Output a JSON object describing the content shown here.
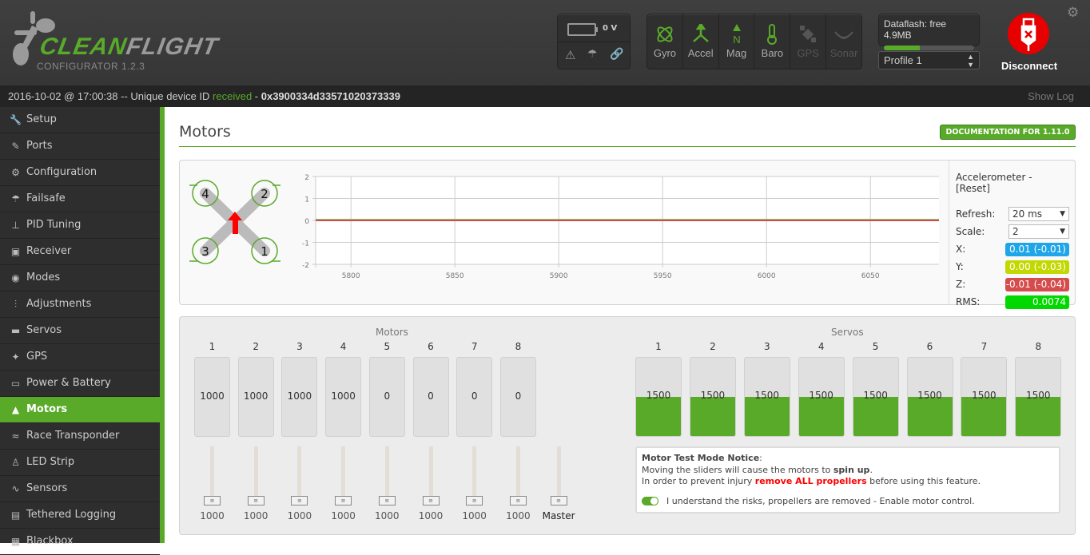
{
  "header": {
    "logo": {
      "word_green": "CLEAN",
      "word_grey": "FLIGHT",
      "subtitle": "CONFIGURATOR  1.2.3"
    },
    "battery": {
      "voltage": "0 V"
    },
    "status_icons": [
      "warning-icon",
      "failsafe-parachute-icon",
      "link-icon"
    ],
    "sensors": [
      {
        "label": "Gyro",
        "active": true
      },
      {
        "label": "Accel",
        "active": true
      },
      {
        "label": "Mag",
        "active": true
      },
      {
        "label": "Baro",
        "active": true
      },
      {
        "label": "GPS",
        "active": false
      },
      {
        "label": "Sonar",
        "active": false
      }
    ],
    "dataflash": {
      "label": "Dataflash: free 4.9MB",
      "used_fraction": 0.4
    },
    "profile": {
      "selected": "Profile 1"
    },
    "disconnect_label": "Disconnect"
  },
  "logbar": {
    "timestamp": "2016-10-02 @ 17:00:38",
    "text": " -- Unique device ID ",
    "status": "received",
    "sep": " - ",
    "device_id": "0x3900334d33571020373339",
    "show_log": "Show Log"
  },
  "sidebar": {
    "items": [
      {
        "label": "Setup",
        "icon": "🔧"
      },
      {
        "label": "Ports",
        "icon": "✎"
      },
      {
        "label": "Configuration",
        "icon": "⚙"
      },
      {
        "label": "Failsafe",
        "icon": "☂"
      },
      {
        "label": "PID Tuning",
        "icon": "⊥"
      },
      {
        "label": "Receiver",
        "icon": "▣"
      },
      {
        "label": "Modes",
        "icon": "◉"
      },
      {
        "label": "Adjustments",
        "icon": "⫶"
      },
      {
        "label": "Servos",
        "icon": "▬"
      },
      {
        "label": "GPS",
        "icon": "✦"
      },
      {
        "label": "Power & Battery",
        "icon": "▭"
      },
      {
        "label": "Motors",
        "icon": "▲",
        "active": true
      },
      {
        "label": "Race Transponder",
        "icon": "≈"
      },
      {
        "label": "LED Strip",
        "icon": "♙"
      },
      {
        "label": "Sensors",
        "icon": "∿"
      },
      {
        "label": "Tethered Logging",
        "icon": "▤"
      },
      {
        "label": "Blackbox",
        "icon": "▦"
      }
    ]
  },
  "main": {
    "title": "Motors",
    "doc_button": "DOCUMENTATION FOR 1.11.0",
    "quad_motor_labels": [
      "4",
      "2",
      "3",
      "1"
    ],
    "accelerometer": {
      "title": "Accelerometer - [Reset]",
      "refresh_label": "Refresh:",
      "refresh_value": "20 ms",
      "scale_label": "Scale:",
      "scale_value": "2",
      "x_label": "X:",
      "x_value": "0.01 (-0.01)",
      "y_label": "Y:",
      "y_value": "0.00 (-0.03)",
      "z_label": "Z:",
      "z_value": "-0.01 (-0.04)",
      "rms_label": "RMS:",
      "rms_value": "0.0074",
      "colors": {
        "x": "#1fa6e9",
        "y": "#c2d800",
        "z": "#d54c4c",
        "rms": "#00d800"
      }
    },
    "motors_title": "Motors",
    "motors": [
      {
        "n": "1",
        "value": "1000",
        "slider": "1000"
      },
      {
        "n": "2",
        "value": "1000",
        "slider": "1000"
      },
      {
        "n": "3",
        "value": "1000",
        "slider": "1000"
      },
      {
        "n": "4",
        "value": "1000",
        "slider": "1000"
      },
      {
        "n": "5",
        "value": "0",
        "slider": "1000"
      },
      {
        "n": "6",
        "value": "0",
        "slider": "1000"
      },
      {
        "n": "7",
        "value": "0",
        "slider": "1000"
      },
      {
        "n": "8",
        "value": "0",
        "slider": "1000"
      }
    ],
    "master_label": "Master",
    "servos_title": "Servos",
    "servos": [
      {
        "n": "1",
        "value": "1500"
      },
      {
        "n": "2",
        "value": "1500"
      },
      {
        "n": "3",
        "value": "1500"
      },
      {
        "n": "4",
        "value": "1500"
      },
      {
        "n": "5",
        "value": "1500"
      },
      {
        "n": "6",
        "value": "1500"
      },
      {
        "n": "7",
        "value": "1500"
      },
      {
        "n": "8",
        "value": "1500"
      }
    ],
    "notice": {
      "title": "Motor Test Mode Notice",
      "line1_pre": "Moving the sliders will cause the motors to ",
      "line1_bold": "spin up",
      "line2_pre": "In order to prevent injury ",
      "line2_red": "remove ALL propellers",
      "line2_post": " before using this feature.",
      "toggle_label": "I understand the risks, propellers are removed - Enable motor control.",
      "toggle_on": true
    }
  },
  "chart_data": {
    "type": "line",
    "xlim": [
      5783,
      6083
    ],
    "ylim": [
      -2,
      2
    ],
    "x_ticks": [
      5800,
      5850,
      5900,
      5950,
      6000,
      6050
    ],
    "y_ticks": [
      2,
      1,
      0,
      -1,
      -2
    ],
    "grid": true,
    "series": [
      {
        "color": "#1fa6e9",
        "x": [
          5783,
          6083
        ],
        "y": [
          0.03,
          0.03
        ]
      },
      {
        "color": "#c2d800",
        "x": [
          5783,
          6083
        ],
        "y": [
          0.02,
          0.02
        ]
      },
      {
        "color": "#d54c4c",
        "x": [
          5783,
          6083
        ],
        "y": [
          0,
          0
        ]
      }
    ]
  }
}
